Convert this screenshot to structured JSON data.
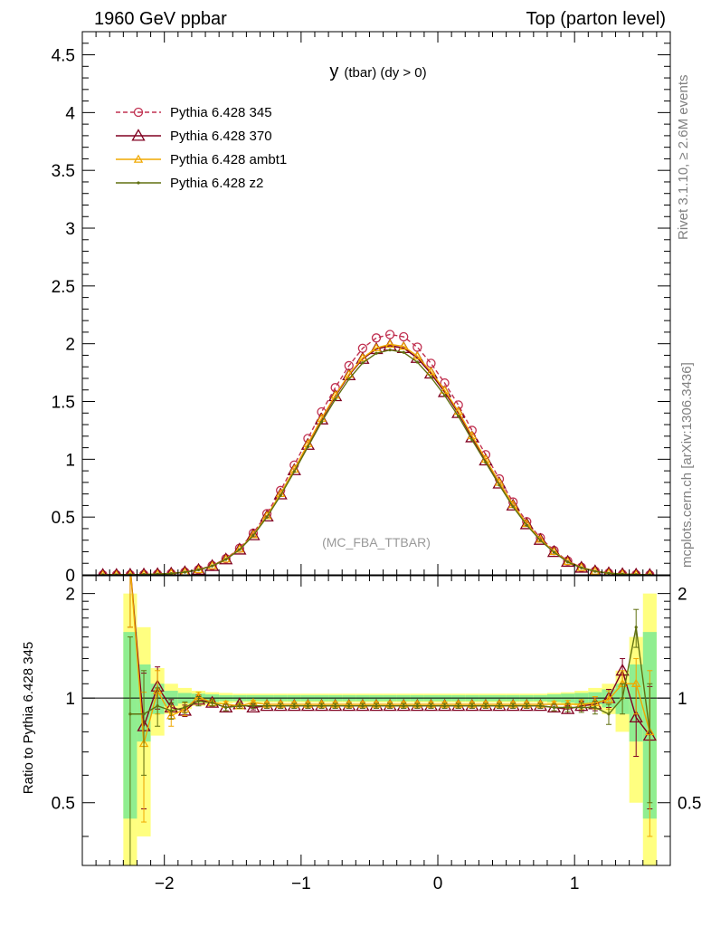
{
  "header": {
    "left": "1960 GeV ppbar",
    "right": "Top (parton level)"
  },
  "side_labels": {
    "rivet": "Rivet 3.1.10, ≥ 2.6M events",
    "mcplots": "mcplots.cern.ch [arXiv:1306.3436]"
  },
  "chart_data": [
    {
      "type": "line",
      "panel": "main",
      "title_main": "y",
      "title_rest": "(tbar) (dy > 0)",
      "annotation": "(MC_FBA_TTBAR)",
      "xlabel": "",
      "ylabel": "",
      "xlim": [
        -2.6,
        1.7
      ],
      "ylim": [
        0,
        4.7
      ],
      "xticks": [
        -2,
        -1,
        0,
        1
      ],
      "xtick_labels": [
        "−2",
        "−1",
        "0",
        "1"
      ],
      "yticks": [
        0,
        0.5,
        1,
        1.5,
        2,
        2.5,
        3,
        3.5,
        4,
        4.5
      ],
      "ytick_labels": [
        "0",
        "0.5",
        "1",
        "1.5",
        "2",
        "2.5",
        "3",
        "3.5",
        "4",
        "4.5"
      ],
      "legend_position": "top-left",
      "x": [
        -2.45,
        -2.35,
        -2.25,
        -2.15,
        -2.05,
        -1.95,
        -1.85,
        -1.75,
        -1.65,
        -1.55,
        -1.45,
        -1.35,
        -1.25,
        -1.15,
        -1.05,
        -0.95,
        -0.85,
        -0.75,
        -0.65,
        -0.55,
        -0.45,
        -0.35,
        -0.25,
        -0.15,
        -0.05,
        0.05,
        0.15,
        0.25,
        0.35,
        0.45,
        0.55,
        0.65,
        0.75,
        0.85,
        0.95,
        1.05,
        1.15,
        1.25,
        1.35,
        1.45,
        1.55
      ],
      "series": [
        {
          "name": "Pythia 6.428 345",
          "color": "#c03050",
          "marker": "circle-open",
          "dashed": true,
          "values": [
            0.0,
            0.0,
            0.001,
            0.003,
            0.006,
            0.012,
            0.024,
            0.045,
            0.08,
            0.14,
            0.23,
            0.36,
            0.53,
            0.73,
            0.95,
            1.18,
            1.41,
            1.62,
            1.81,
            1.96,
            2.05,
            2.08,
            2.06,
            1.97,
            1.83,
            1.66,
            1.47,
            1.25,
            1.04,
            0.83,
            0.63,
            0.46,
            0.32,
            0.21,
            0.12,
            0.065,
            0.032,
            0.015,
            0.006,
            0.002,
            0.0
          ]
        },
        {
          "name": "Pythia 6.428 370",
          "color": "#800020",
          "marker": "triangle-open",
          "dashed": false,
          "values": [
            0.0,
            0.0,
            0.001,
            0.003,
            0.006,
            0.011,
            0.023,
            0.043,
            0.077,
            0.134,
            0.219,
            0.343,
            0.505,
            0.696,
            0.906,
            1.125,
            1.345,
            1.546,
            1.727,
            1.869,
            1.954,
            1.983,
            1.962,
            1.877,
            1.742,
            1.582,
            1.4,
            1.19,
            0.99,
            0.79,
            0.6,
            0.438,
            0.303,
            0.198,
            0.113,
            0.062,
            0.031,
            0.014,
            0.006,
            0.002,
            0.0
          ]
        },
        {
          "name": "Pythia 6.428 ambt1",
          "color": "#f0a800",
          "marker": "triangle-small",
          "dashed": false,
          "values": [
            0.0,
            0.0,
            0.001,
            0.003,
            0.006,
            0.012,
            0.023,
            0.044,
            0.078,
            0.136,
            0.222,
            0.347,
            0.511,
            0.703,
            0.914,
            1.134,
            1.354,
            1.554,
            1.735,
            1.877,
            1.963,
            1.995,
            1.977,
            1.893,
            1.758,
            1.597,
            1.414,
            1.203,
            1.001,
            0.8,
            0.607,
            0.443,
            0.307,
            0.201,
            0.115,
            0.063,
            0.031,
            0.015,
            0.007,
            0.002,
            0.0
          ]
        },
        {
          "name": "Pythia 6.428 z2",
          "color": "#607010",
          "marker": "dot",
          "dashed": false,
          "values": [
            0.0,
            0.0,
            0.001,
            0.003,
            0.006,
            0.011,
            0.023,
            0.043,
            0.077,
            0.133,
            0.218,
            0.34,
            0.5,
            0.687,
            0.893,
            1.108,
            1.323,
            1.519,
            1.694,
            1.834,
            1.917,
            1.946,
            1.925,
            1.841,
            1.709,
            1.552,
            1.373,
            1.168,
            0.972,
            0.776,
            0.589,
            0.43,
            0.298,
            0.195,
            0.111,
            0.061,
            0.03,
            0.014,
            0.006,
            0.002,
            0.0
          ]
        }
      ]
    },
    {
      "type": "line",
      "panel": "ratio",
      "ylabel": "Ratio to Pythia 6.428 345",
      "xlim": [
        -2.6,
        1.7
      ],
      "ylim": [
        0.33,
        2.25
      ],
      "ylog": true,
      "yticks": [
        0.5,
        1,
        2
      ],
      "ytick_labels": [
        "0.5",
        "1",
        "2"
      ],
      "x": [
        -2.25,
        -2.15,
        -2.05,
        -1.95,
        -1.85,
        -1.75,
        -1.65,
        -1.55,
        -1.45,
        -1.35,
        -1.25,
        -1.15,
        -1.05,
        -0.95,
        -0.85,
        -0.75,
        -0.65,
        -0.55,
        -0.45,
        -0.35,
        -0.25,
        -0.15,
        -0.05,
        0.05,
        0.15,
        0.25,
        0.35,
        0.45,
        0.55,
        0.65,
        0.75,
        0.85,
        0.95,
        1.05,
        1.15,
        1.25,
        1.35,
        1.45,
        1.55
      ],
      "bands": {
        "green_halfwidth": [
          0.55,
          0.25,
          0.1,
          0.05,
          0.035,
          0.03,
          0.025,
          0.02,
          0.02,
          0.02,
          0.02,
          0.02,
          0.02,
          0.02,
          0.02,
          0.02,
          0.02,
          0.02,
          0.02,
          0.02,
          0.02,
          0.02,
          0.02,
          0.02,
          0.02,
          0.02,
          0.02,
          0.02,
          0.02,
          0.02,
          0.02,
          0.025,
          0.03,
          0.035,
          0.04,
          0.06,
          0.1,
          0.25,
          0.55
        ],
        "yellow_halfwidth": [
          1.0,
          0.6,
          0.22,
          0.1,
          0.07,
          0.05,
          0.04,
          0.035,
          0.03,
          0.03,
          0.03,
          0.03,
          0.03,
          0.03,
          0.03,
          0.03,
          0.03,
          0.03,
          0.03,
          0.03,
          0.03,
          0.03,
          0.03,
          0.03,
          0.03,
          0.03,
          0.03,
          0.03,
          0.03,
          0.03,
          0.03,
          0.035,
          0.04,
          0.05,
          0.07,
          0.1,
          0.2,
          0.5,
          1.0
        ]
      },
      "series": [
        {
          "name": "Pythia 6.428 370",
          "values": [
            2.4,
            0.83,
            1.08,
            0.94,
            0.92,
            0.99,
            0.97,
            0.94,
            0.96,
            0.94,
            0.95,
            0.95,
            0.95,
            0.95,
            0.95,
            0.95,
            0.95,
            0.95,
            0.95,
            0.95,
            0.95,
            0.95,
            0.95,
            0.95,
            0.95,
            0.95,
            0.95,
            0.95,
            0.95,
            0.95,
            0.95,
            0.94,
            0.93,
            0.95,
            0.96,
            1.0,
            1.2,
            0.88,
            0.78
          ],
          "errors": [
            0.8,
            0.35,
            0.15,
            0.05,
            0.035,
            0.03,
            0.02,
            0.02,
            0.015,
            0.015,
            0.015,
            0.015,
            0.015,
            0.015,
            0.015,
            0.015,
            0.015,
            0.015,
            0.015,
            0.015,
            0.015,
            0.015,
            0.015,
            0.015,
            0.015,
            0.015,
            0.015,
            0.015,
            0.015,
            0.015,
            0.015,
            0.02,
            0.025,
            0.03,
            0.04,
            0.06,
            0.1,
            0.2,
            0.3
          ]
        },
        {
          "name": "Pythia 6.428 ambt1",
          "values": [
            2.4,
            0.74,
            1.05,
            0.89,
            0.93,
            1.01,
            0.97,
            0.96,
            0.95,
            0.97,
            0.96,
            0.96,
            0.96,
            0.96,
            0.96,
            0.96,
            0.96,
            0.96,
            0.96,
            0.96,
            0.96,
            0.96,
            0.96,
            0.96,
            0.96,
            0.96,
            0.96,
            0.96,
            0.96,
            0.96,
            0.96,
            0.96,
            0.96,
            0.96,
            0.97,
            0.99,
            1.1,
            1.1,
            0.8
          ],
          "errors": [
            0.8,
            0.3,
            0.15,
            0.06,
            0.04,
            0.03,
            0.02,
            0.02,
            0.015,
            0.015,
            0.015,
            0.015,
            0.015,
            0.015,
            0.015,
            0.015,
            0.015,
            0.015,
            0.015,
            0.015,
            0.015,
            0.015,
            0.015,
            0.015,
            0.015,
            0.015,
            0.015,
            0.015,
            0.015,
            0.015,
            0.015,
            0.02,
            0.025,
            0.03,
            0.04,
            0.06,
            0.1,
            0.2,
            0.4
          ]
        },
        {
          "name": "Pythia 6.428 z2",
          "values": [
            0.9,
            0.9,
            0.95,
            0.92,
            0.94,
            0.98,
            0.97,
            0.94,
            0.95,
            0.95,
            0.95,
            0.95,
            0.95,
            0.95,
            0.95,
            0.95,
            0.95,
            0.95,
            0.95,
            0.95,
            0.95,
            0.95,
            0.95,
            0.95,
            0.95,
            0.95,
            0.95,
            0.95,
            0.95,
            0.95,
            0.95,
            0.94,
            0.94,
            0.94,
            0.94,
            0.9,
            1.0,
            1.6,
            0.8
          ],
          "errors": [
            0.6,
            0.3,
            0.12,
            0.05,
            0.035,
            0.03,
            0.02,
            0.02,
            0.015,
            0.015,
            0.015,
            0.015,
            0.015,
            0.015,
            0.015,
            0.015,
            0.015,
            0.015,
            0.015,
            0.015,
            0.015,
            0.015,
            0.015,
            0.015,
            0.015,
            0.015,
            0.015,
            0.015,
            0.015,
            0.015,
            0.015,
            0.02,
            0.025,
            0.03,
            0.04,
            0.06,
            0.1,
            0.2,
            0.3
          ]
        }
      ]
    }
  ]
}
